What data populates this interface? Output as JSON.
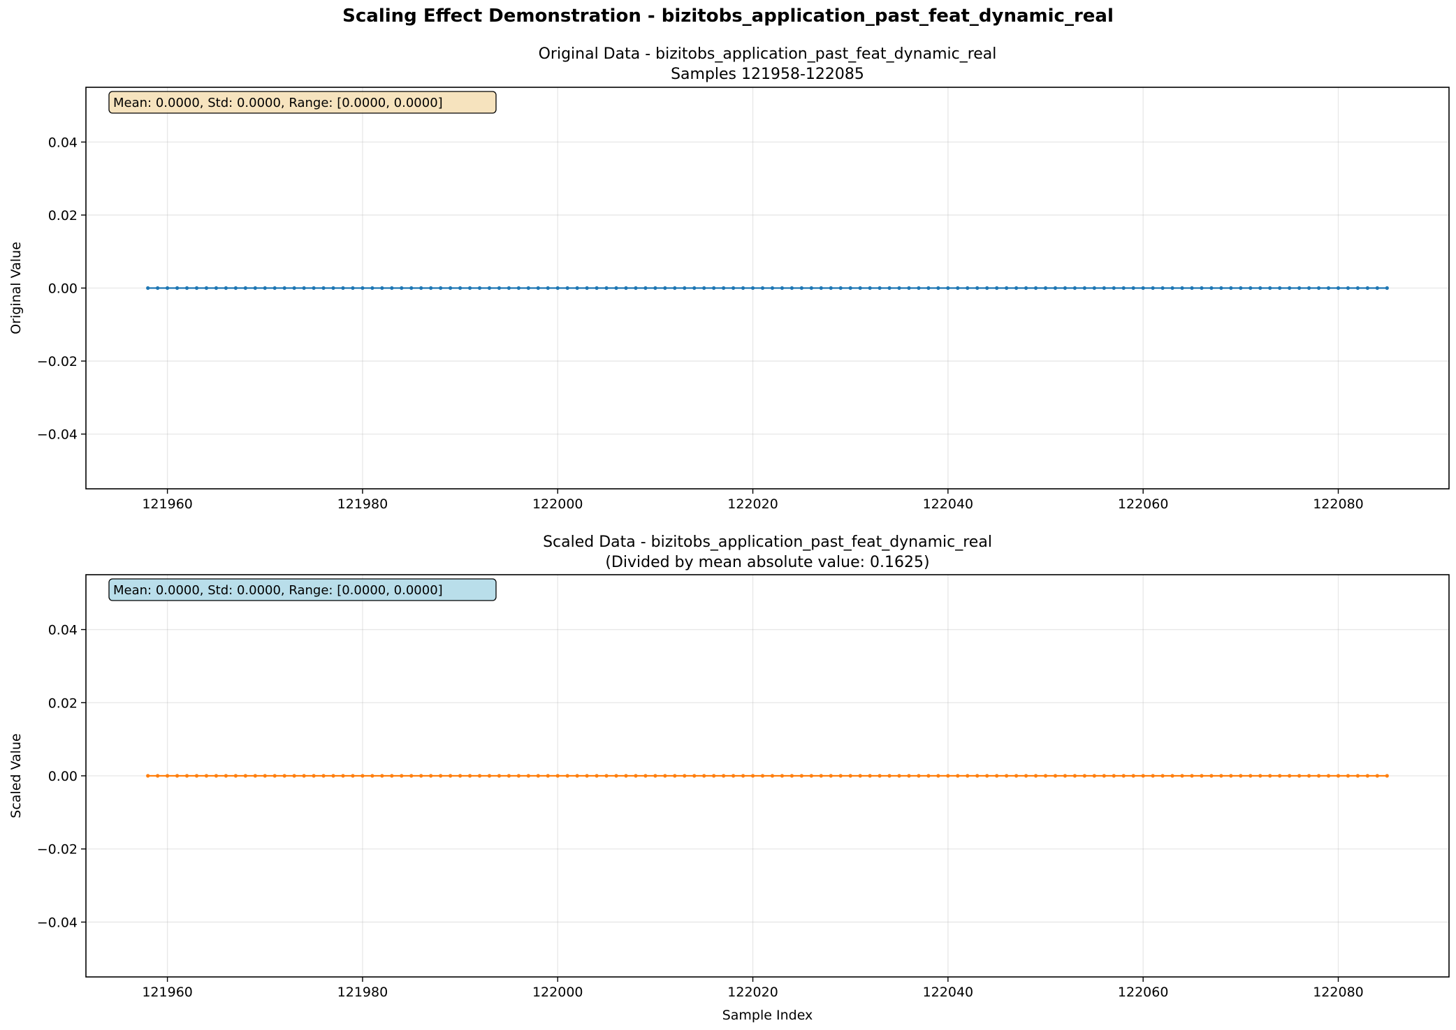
{
  "figure": {
    "suptitle": "Scaling Effect Demonstration - bizitobs_application_past_feat_dynamic_real"
  },
  "chart_data": [
    {
      "type": "line",
      "title": "Original Data - bizitobs_application_past_feat_dynamic_real",
      "subtitle": "Samples 121958-122085",
      "xlabel": "",
      "ylabel": "Original Value",
      "xlim": [
        121951.65,
        122091.35
      ],
      "ylim": [
        -0.055,
        0.055
      ],
      "xticks": [
        121960,
        121980,
        122000,
        122020,
        122040,
        122060,
        122080
      ],
      "yticks": [
        -0.04,
        -0.02,
        0.0,
        0.02,
        0.04
      ],
      "ytick_labels": [
        "−0.04",
        "−0.02",
        "0.00",
        "0.02",
        "0.04"
      ],
      "grid": true,
      "stats_text": "Mean: 0.0000, Std: 0.0000, Range: [0.0000, 0.0000]",
      "stats_box_color": "#f5deb3",
      "series": [
        {
          "color": "#1f77b4",
          "x_start": 121958,
          "x_end": 122085,
          "constant_y": 0.0
        }
      ]
    },
    {
      "type": "line",
      "title": "Scaled Data - bizitobs_application_past_feat_dynamic_real",
      "subtitle": "(Divided by mean absolute value: 0.1625)",
      "xlabel": "Sample Index",
      "ylabel": "Scaled Value",
      "xlim": [
        121951.65,
        122091.35
      ],
      "ylim": [
        -0.055,
        0.055
      ],
      "xticks": [
        121960,
        121980,
        122000,
        122020,
        122040,
        122060,
        122080
      ],
      "yticks": [
        -0.04,
        -0.02,
        0.0,
        0.02,
        0.04
      ],
      "ytick_labels": [
        "−0.04",
        "−0.02",
        "0.00",
        "0.02",
        "0.04"
      ],
      "grid": true,
      "stats_text": "Mean: 0.0000, Std: 0.0000, Range: [0.0000, 0.0000]",
      "stats_box_color": "#add8e6",
      "series": [
        {
          "color": "#ff7f0e",
          "x_start": 121958,
          "x_end": 122085,
          "constant_y": 0.0
        }
      ]
    }
  ]
}
